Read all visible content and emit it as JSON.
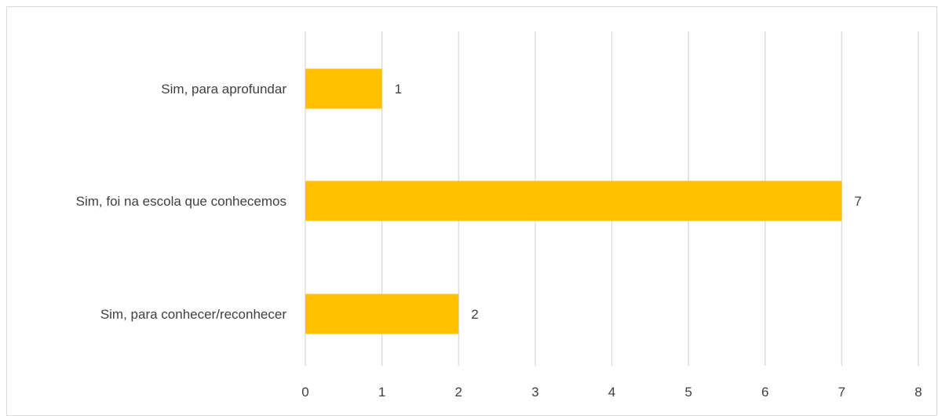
{
  "chart_data": {
    "type": "bar",
    "orientation": "horizontal",
    "categories": [
      "Sim, para aprofundar",
      "Sim, foi na escola que conhecemos",
      "Sim, para conhecer/reconhecer"
    ],
    "values": [
      1,
      7,
      2
    ],
    "xlim": [
      0,
      8
    ],
    "xticks": [
      0,
      1,
      2,
      3,
      4,
      5,
      6,
      7,
      8
    ],
    "data_labels": [
      "1",
      "7",
      "2"
    ],
    "title": "",
    "xlabel": "",
    "ylabel": "",
    "grid": true,
    "legend": "none",
    "colors": {
      "bar": "#FFC000",
      "grid": "#d9d9d9",
      "text": "#404040",
      "border": "#d9d9d9"
    }
  }
}
